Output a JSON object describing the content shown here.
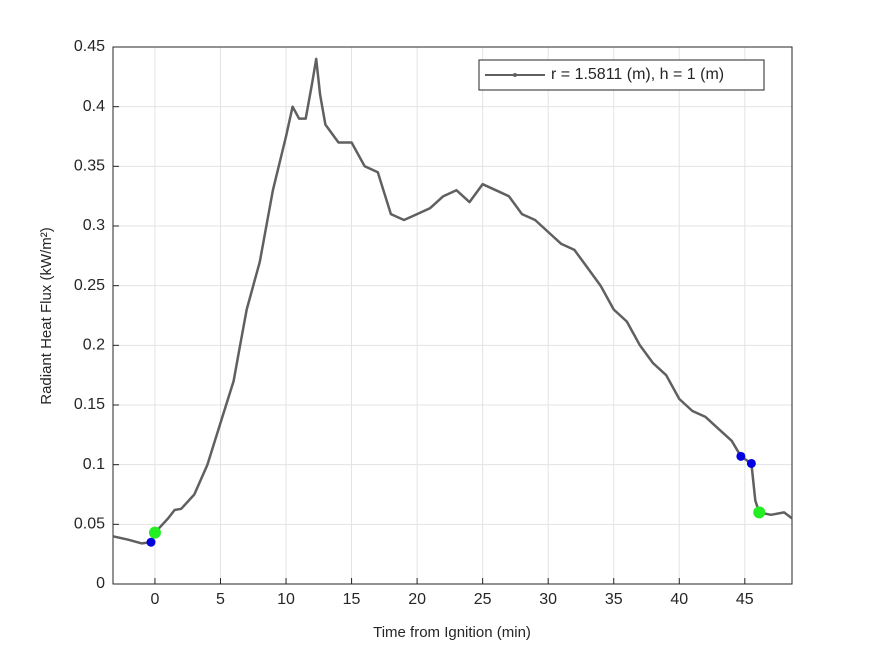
{
  "chart_data": {
    "type": "line",
    "xlabel": "Time from Ignition (min)",
    "ylabel": "Radiant Heat Flux (kW/m²)",
    "x": [
      -3.2,
      -2,
      -1,
      -0.3,
      0,
      1,
      1.5,
      2,
      3,
      4,
      5,
      6,
      6.5,
      7,
      8,
      9,
      10,
      10.5,
      11,
      11.5,
      12,
      12.3,
      12.6,
      13,
      14,
      15,
      16,
      17,
      18,
      19,
      20,
      21,
      22,
      23,
      24,
      25,
      26,
      27,
      28,
      29,
      30,
      31,
      32,
      33,
      34,
      35,
      36,
      37,
      38,
      39,
      40,
      41,
      42,
      43,
      44,
      44.7,
      45.5,
      45.8,
      46.1,
      47,
      48,
      48.6
    ],
    "series": [
      {
        "name": "r = 1.5811 (m), h = 1 (m)",
        "color": "#606060",
        "values": [
          0.04,
          0.037,
          0.034,
          0.035,
          0.043,
          0.055,
          0.062,
          0.063,
          0.075,
          0.1,
          0.135,
          0.17,
          0.2,
          0.23,
          0.27,
          0.33,
          0.375,
          0.4,
          0.39,
          0.39,
          0.42,
          0.44,
          0.41,
          0.385,
          0.37,
          0.37,
          0.35,
          0.345,
          0.31,
          0.305,
          0.31,
          0.315,
          0.325,
          0.33,
          0.32,
          0.335,
          0.33,
          0.325,
          0.31,
          0.305,
          0.295,
          0.285,
          0.28,
          0.265,
          0.25,
          0.23,
          0.22,
          0.2,
          0.185,
          0.175,
          0.155,
          0.145,
          0.14,
          0.13,
          0.12,
          0.107,
          0.101,
          0.07,
          0.06,
          0.058,
          0.06,
          0.055
        ]
      }
    ],
    "markers": [
      {
        "color": "#0000e0",
        "x": [
          -0.3,
          44.7,
          45.5
        ],
        "values": [
          0.035,
          0.107,
          0.101
        ]
      },
      {
        "color": "#22ee22",
        "x": [
          0,
          46.1
        ],
        "values": [
          0.043,
          0.06
        ]
      }
    ],
    "xlim": [
      -3.2,
      48.6
    ],
    "ylim": [
      0,
      0.45
    ],
    "xticks": [
      0,
      5,
      10,
      15,
      20,
      25,
      30,
      35,
      40,
      45
    ],
    "yticks": [
      0,
      0.05,
      0.1,
      0.15,
      0.2,
      0.25,
      0.3,
      0.35,
      0.4,
      0.45
    ],
    "grid": true,
    "legend": "top-right"
  }
}
